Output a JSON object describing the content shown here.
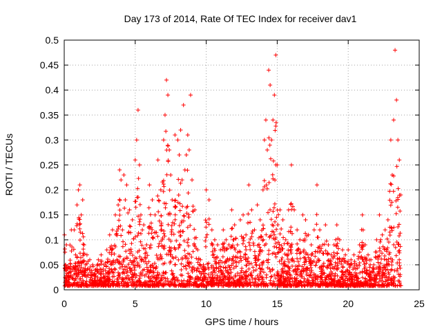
{
  "chart_data": {
    "type": "scatter",
    "title": "Day 173 of 2014, Rate Of TEC Index for receiver dav1",
    "xlabel": "GPS time / hours",
    "ylabel": "ROTI / TECUs",
    "xlim": [
      0,
      25
    ],
    "ylim": [
      0,
      0.5
    ],
    "x_ticks": [
      0,
      5,
      10,
      15,
      20,
      25
    ],
    "y_ticks": [
      0,
      0.05,
      0.1,
      0.15,
      0.2,
      0.25,
      0.3,
      0.35,
      0.4,
      0.45,
      0.5
    ],
    "x_tick_labels": [
      "0",
      "5",
      "10",
      "15",
      "20",
      "25"
    ],
    "y_tick_labels": [
      "0",
      "0.05",
      "0.1",
      "0.15",
      "0.2",
      "0.25",
      "0.3",
      "0.35",
      "0.4",
      "0.45",
      "0.5"
    ],
    "grid": true,
    "legend": "none",
    "marker": "plus",
    "color": "#ff0000",
    "series": [
      {
        "x": [
          0.02,
          0.1,
          0.15,
          0.3,
          0.5,
          0.6,
          0.7,
          0.8,
          0.9,
          1.0,
          1.1,
          1.2,
          1.3,
          1.4,
          1.5,
          1.6,
          1.8,
          2.0,
          2.2,
          2.4,
          2.6,
          2.8,
          3.0,
          3.2,
          3.4,
          3.6,
          3.8,
          3.9,
          4.0,
          4.1,
          4.2,
          4.3,
          4.4,
          4.6,
          4.8,
          5.0,
          5.1,
          5.2,
          5.3,
          5.4,
          5.5,
          5.6,
          5.8,
          6.0,
          6.2,
          6.4,
          6.6,
          6.8,
          7.0,
          7.1,
          7.2,
          7.3,
          7.4,
          7.5,
          7.6,
          7.8,
          8.0,
          8.1,
          8.2,
          8.3,
          8.4,
          8.5,
          8.6,
          8.7,
          8.8,
          8.9,
          9.0,
          9.2,
          9.4,
          9.6,
          9.8,
          10.0,
          10.2,
          10.4,
          10.6,
          10.8,
          11.0,
          11.2,
          11.4,
          11.6,
          11.8,
          12.0,
          12.2,
          12.4,
          12.6,
          12.8,
          13.0,
          13.2,
          13.4,
          13.6,
          13.8,
          14.0,
          14.1,
          14.2,
          14.3,
          14.4,
          14.5,
          14.6,
          14.7,
          14.8,
          14.9,
          15.0,
          15.2,
          15.4,
          15.6,
          15.8,
          16.0,
          16.2,
          16.4,
          16.6,
          16.8,
          17.0,
          17.2,
          17.4,
          17.6,
          17.8,
          18.0,
          18.2,
          18.4,
          18.6,
          18.8,
          19.0,
          19.2,
          19.4,
          19.6,
          19.8,
          20.0,
          20.2,
          20.4,
          20.6,
          20.8,
          21.0,
          21.2,
          21.4,
          21.6,
          21.8,
          22.0,
          22.2,
          22.4,
          22.6,
          22.8,
          23.0,
          23.1,
          23.2,
          23.3,
          23.4,
          23.5,
          23.6,
          23.7
        ],
        "y": [
          0.11,
          0.05,
          0.09,
          0.02,
          0.12,
          0.04,
          0.12,
          0.07,
          0.17,
          0.2,
          0.21,
          0.15,
          0.18,
          0.09,
          0.05,
          0.07,
          0.06,
          0.05,
          0.04,
          0.06,
          0.07,
          0.05,
          0.08,
          0.11,
          0.12,
          0.15,
          0.17,
          0.24,
          0.22,
          0.12,
          0.23,
          0.18,
          0.21,
          0.16,
          0.14,
          0.26,
          0.3,
          0.36,
          0.25,
          0.15,
          0.12,
          0.13,
          0.09,
          0.21,
          0.18,
          0.15,
          0.26,
          0.2,
          0.3,
          0.35,
          0.42,
          0.39,
          0.28,
          0.23,
          0.18,
          0.31,
          0.3,
          0.27,
          0.32,
          0.22,
          0.37,
          0.24,
          0.27,
          0.31,
          0.28,
          0.39,
          0.22,
          0.16,
          0.08,
          0.06,
          0.05,
          0.2,
          0.18,
          0.12,
          0.1,
          0.09,
          0.08,
          0.12,
          0.1,
          0.09,
          0.16,
          0.13,
          0.09,
          0.14,
          0.15,
          0.11,
          0.21,
          0.16,
          0.12,
          0.17,
          0.14,
          0.2,
          0.3,
          0.34,
          0.28,
          0.44,
          0.41,
          0.3,
          0.34,
          0.39,
          0.47,
          0.25,
          0.16,
          0.14,
          0.1,
          0.16,
          0.25,
          0.16,
          0.12,
          0.1,
          0.15,
          0.14,
          0.11,
          0.09,
          0.12,
          0.21,
          0.12,
          0.09,
          0.13,
          0.09,
          0.07,
          0.09,
          0.13,
          0.1,
          0.08,
          0.07,
          0.08,
          0.06,
          0.07,
          0.05,
          0.09,
          0.15,
          0.09,
          0.07,
          0.06,
          0.05,
          0.1,
          0.15,
          0.11,
          0.12,
          0.14,
          0.3,
          0.23,
          0.34,
          0.48,
          0.38,
          0.3,
          0.26,
          0.19
        ]
      }
    ]
  }
}
